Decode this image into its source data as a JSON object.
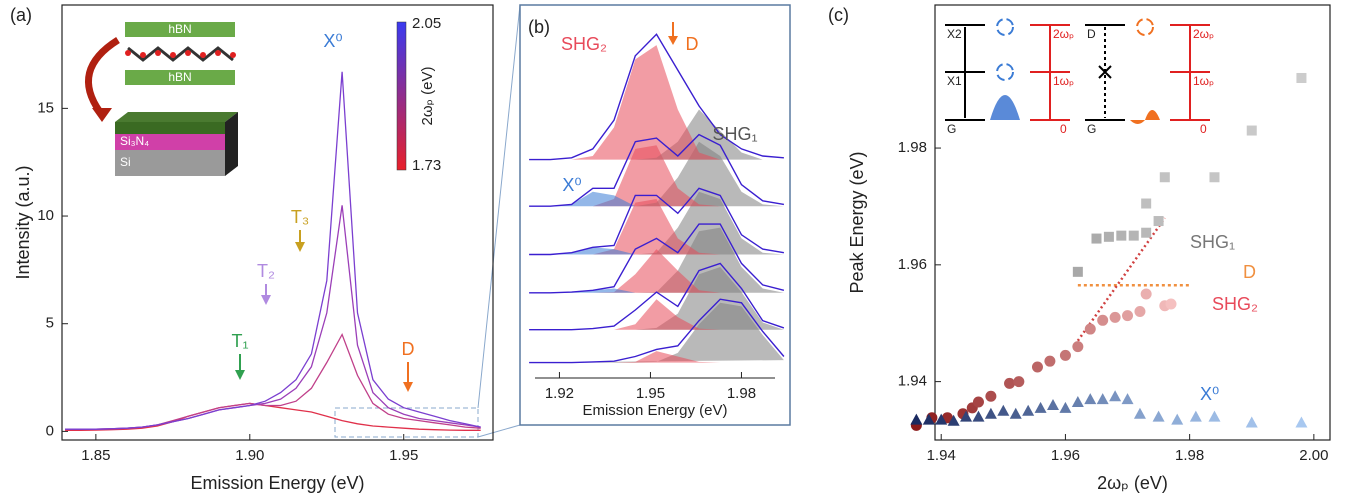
{
  "chart_data": [
    {
      "type": "line",
      "title": "(a)",
      "xlabel": "Emission Energy (eV)",
      "ylabel": "Intensity (a.u.)",
      "xlim": [
        1.839,
        1.979
      ],
      "ylim": [
        -0.4,
        19.8
      ],
      "xticks": [
        1.85,
        {
          "value": 1.9,
          "label": "1.90"
        },
        1.95
      ],
      "yticks": [
        0,
        5,
        10,
        15
      ],
      "x": [
        1.84,
        1.845,
        1.85,
        1.855,
        1.86,
        1.865,
        1.87,
        1.875,
        1.88,
        1.885,
        1.89,
        1.895,
        1.9,
        1.905,
        1.91,
        1.915,
        1.92,
        1.925,
        1.93,
        1.935,
        1.94,
        1.945,
        1.95,
        1.955,
        1.96,
        1.965,
        1.97,
        1.975
      ],
      "series": [
        {
          "color": "#e0304a",
          "values": [
            0.05,
            0.05,
            0.06,
            0.08,
            0.1,
            0.15,
            0.25,
            0.45,
            0.7,
            0.9,
            1.1,
            1.2,
            1.3,
            1.2,
            1.1,
            1.0,
            0.9,
            0.7,
            0.5,
            0.35,
            0.25,
            0.2,
            0.15,
            0.1,
            0.08,
            0.06,
            0.05,
            0.05
          ]
        },
        {
          "color": "#c0408a",
          "values": [
            0.1,
            0.1,
            0.1,
            0.12,
            0.15,
            0.2,
            0.3,
            0.5,
            0.7,
            0.9,
            1.1,
            1.2,
            1.3,
            1.2,
            1.2,
            1.4,
            2.0,
            3.2,
            4.5,
            2.6,
            1.3,
            0.8,
            0.6,
            0.5,
            0.4,
            0.3,
            0.2,
            0.15
          ]
        },
        {
          "color": "#9b3fb8",
          "values": [
            0.1,
            0.1,
            0.1,
            0.12,
            0.15,
            0.2,
            0.3,
            0.45,
            0.6,
            0.8,
            1.0,
            1.1,
            1.2,
            1.3,
            1.5,
            2.0,
            3.0,
            5.5,
            10.5,
            4.0,
            1.8,
            1.1,
            0.8,
            0.6,
            0.5,
            0.4,
            0.3,
            0.2
          ]
        },
        {
          "color": "#7b3fd0",
          "values": [
            0.1,
            0.1,
            0.1,
            0.12,
            0.15,
            0.2,
            0.3,
            0.45,
            0.6,
            0.8,
            1.0,
            1.1,
            1.2,
            1.4,
            1.8,
            2.4,
            3.6,
            7.0,
            16.7,
            5.5,
            2.4,
            1.5,
            1.1,
            0.9,
            0.7,
            0.5,
            0.35,
            0.2
          ]
        }
      ],
      "annotations": [
        {
          "text": "X⁰",
          "color": "#3a7bd5"
        },
        {
          "text": "T₃",
          "color": "#c8a020"
        },
        {
          "text": "T₂",
          "color": "#b08ae0"
        },
        {
          "text": "T₁",
          "color": "#30a050"
        },
        {
          "text": "D",
          "color": "#f07020"
        }
      ],
      "colorbar": {
        "label": "2ωₚ (eV)",
        "clim": [
          1.73,
          2.05
        ],
        "colors": [
          "#e8202a",
          "#3a3af0"
        ]
      },
      "inset_labels": [
        "hBN",
        "hBN",
        "Si₃N₄",
        "Si"
      ]
    },
    {
      "type": "offset-line",
      "title": "(b)",
      "xlabel": "Emission Energy (eV)",
      "xlim": [
        1.907,
        1.996
      ],
      "ylim": [
        0,
        10
      ],
      "xticks": [
        1.92,
        1.95,
        1.98
      ],
      "x": [
        1.91,
        1.917,
        1.924,
        1.931,
        1.938,
        1.945,
        1.952,
        1.959,
        1.966,
        1.973,
        1.98,
        1.987,
        1.994
      ],
      "fills": [
        {
          "color": "#808080",
          "values": [
            0.43,
            0.43,
            0.43,
            0.43,
            0.43,
            0.43,
            0.45,
            0.7,
            1.5,
            2.1,
            2.0,
            1.2,
            0.5
          ]
        },
        {
          "color": "#e84a5a",
          "values": [
            0.43,
            0.43,
            0.43,
            0.43,
            0.43,
            0.45,
            0.75,
            0.6,
            0.45,
            0.43,
            0.43,
            0.43,
            0.43
          ]
        },
        {
          "color": "#808080",
          "values": [
            1.35,
            1.35,
            1.35,
            1.35,
            1.35,
            1.35,
            1.4,
            1.8,
            2.9,
            3.1,
            2.4,
            1.55,
            1.35
          ]
        },
        {
          "color": "#e84a5a",
          "values": [
            1.35,
            1.35,
            1.35,
            1.35,
            1.35,
            1.5,
            2.2,
            1.7,
            1.38,
            1.35,
            1.35,
            1.35,
            1.35
          ]
        },
        {
          "color": "#808080",
          "values": [
            2.38,
            2.38,
            2.38,
            2.38,
            2.38,
            2.38,
            2.4,
            3.0,
            4.1,
            4.2,
            3.1,
            2.5,
            2.38
          ]
        },
        {
          "color": "#e84a5a",
          "values": [
            2.38,
            2.38,
            2.38,
            2.38,
            2.4,
            2.9,
            3.6,
            3.0,
            2.45,
            2.38,
            2.38,
            2.38,
            2.38
          ]
        },
        {
          "color": "#3a7bd5",
          "values": [
            2.38,
            2.38,
            2.4,
            2.45,
            2.5,
            2.38,
            2.38,
            2.38,
            2.38,
            2.38,
            2.38,
            2.38,
            2.38
          ]
        },
        {
          "color": "#808080",
          "values": [
            3.45,
            3.45,
            3.45,
            3.45,
            3.45,
            3.45,
            3.5,
            4.2,
            5.2,
            5.0,
            3.9,
            3.5,
            3.45
          ]
        },
        {
          "color": "#e84a5a",
          "values": [
            3.45,
            3.45,
            3.45,
            3.45,
            3.6,
            4.9,
            5.0,
            3.9,
            3.5,
            3.45,
            3.45,
            3.45,
            3.45
          ]
        },
        {
          "color": "#3a7bd5",
          "values": [
            3.45,
            3.45,
            3.5,
            3.65,
            3.6,
            3.45,
            3.45,
            3.45,
            3.45,
            3.45,
            3.45,
            3.45,
            3.45
          ]
        },
        {
          "color": "#808080",
          "values": [
            4.8,
            4.8,
            4.8,
            4.8,
            4.8,
            4.8,
            4.9,
            5.6,
            6.6,
            6.2,
            5.2,
            4.85,
            4.8
          ]
        },
        {
          "color": "#e84a5a",
          "values": [
            4.8,
            4.8,
            4.8,
            4.8,
            5.0,
            6.4,
            6.5,
            5.3,
            4.85,
            4.8,
            4.8,
            4.8,
            4.8
          ]
        },
        {
          "color": "#3a7bd5",
          "values": [
            4.8,
            4.8,
            4.85,
            5.2,
            5.1,
            4.8,
            4.8,
            4.8,
            4.8,
            4.8,
            4.8,
            4.8,
            4.8
          ]
        },
        {
          "color": "#808080",
          "values": [
            6.1,
            6.1,
            6.1,
            6.1,
            6.1,
            6.1,
            6.15,
            6.6,
            7.5,
            6.9,
            6.3,
            6.1,
            6.1
          ]
        },
        {
          "color": "#e84a5a",
          "values": [
            6.1,
            6.1,
            6.1,
            6.2,
            7.0,
            8.9,
            9.3,
            7.5,
            6.3,
            6.1,
            6.1,
            6.1,
            6.1
          ]
        }
      ],
      "series": [
        {
          "color": "#3a1fd0",
          "values": [
            0.43,
            0.43,
            0.43,
            0.45,
            0.47,
            0.6,
            0.8,
            0.9,
            1.6,
            2.2,
            2.1,
            1.3,
            0.6
          ]
        },
        {
          "color": "#3a1fd0",
          "values": [
            1.35,
            1.35,
            1.35,
            1.38,
            1.45,
            1.9,
            2.4,
            2.0,
            3.0,
            3.2,
            2.5,
            1.6,
            1.4
          ]
        },
        {
          "color": "#3a1fd0",
          "values": [
            2.38,
            2.38,
            2.4,
            2.45,
            2.55,
            3.6,
            3.9,
            3.5,
            4.3,
            4.3,
            3.2,
            2.6,
            2.45
          ]
        },
        {
          "color": "#3a1fd0",
          "values": [
            3.45,
            3.45,
            3.5,
            3.65,
            3.7,
            5.1,
            5.1,
            4.6,
            5.3,
            5.1,
            4.0,
            3.6,
            3.5
          ]
        },
        {
          "color": "#3a1fd0",
          "values": [
            4.8,
            4.8,
            4.85,
            5.3,
            5.3,
            6.6,
            6.7,
            6.2,
            6.8,
            6.5,
            5.4,
            4.95,
            4.85
          ]
        },
        {
          "color": "#3a1fd0",
          "values": [
            6.1,
            6.1,
            6.15,
            6.4,
            7.2,
            9.0,
            9.6,
            8.6,
            7.6,
            6.8,
            6.4,
            6.2,
            6.15
          ]
        }
      ],
      "annotations": [
        {
          "text": "SHG₂",
          "color": "#e84a5a"
        },
        {
          "text": "D",
          "color": "#f07020"
        },
        {
          "text": "SHG₁",
          "color": "#555555"
        },
        {
          "text": "X⁰",
          "color": "#3a7bd5"
        }
      ]
    },
    {
      "type": "scatter",
      "title": "(c)",
      "xlabel": "2ωₚ (eV)",
      "ylabel": "Peak Energy (eV)",
      "xlim": [
        1.939,
        2.0026
      ],
      "ylim": [
        1.93,
        2.0045
      ],
      "xticks": [
        1.94,
        1.96,
        1.98,
        {
          "value": 2,
          "label": "2.00"
        }
      ],
      "yticks": [
        1.94,
        1.96,
        1.98
      ],
      "series": [
        {
          "name": "SHG₁",
          "marker": "square",
          "color_range": [
            "#a8a8a8",
            "#cccccc"
          ],
          "x": [
            1.962,
            1.965,
            1.967,
            1.969,
            1.971,
            1.973,
            1.975,
            1.973,
            1.976,
            1.984,
            1.99,
            1.998
          ],
          "values": [
            1.9588,
            1.9645,
            1.9648,
            1.965,
            1.965,
            1.9655,
            1.9675,
            1.9705,
            1.975,
            1.975,
            1.983,
            1.992
          ]
        },
        {
          "name": "SHG₂",
          "marker": "circle",
          "color_range": [
            "#8b1a1a",
            "#f5c0c0"
          ],
          "x": [
            1.936,
            1.9385,
            1.941,
            1.9435,
            1.945,
            1.946,
            1.948,
            1.951,
            1.9525,
            1.9555,
            1.9575,
            1.96,
            1.962,
            1.964,
            1.966,
            1.968,
            1.97,
            1.972,
            1.973,
            1.976,
            1.977
          ],
          "values": [
            1.9325,
            1.9338,
            1.9338,
            1.9345,
            1.9355,
            1.9365,
            1.9375,
            1.9397,
            1.94,
            1.9425,
            1.9435,
            1.9445,
            1.946,
            1.949,
            1.9505,
            1.951,
            1.9513,
            1.952,
            1.955,
            1.953,
            1.9533
          ]
        },
        {
          "name": "X⁰",
          "marker": "triangle",
          "color_range": [
            "#1a2a60",
            "#a8c8f0"
          ],
          "x": [
            1.936,
            1.938,
            1.94,
            1.942,
            1.944,
            1.946,
            1.948,
            1.95,
            1.952,
            1.954,
            1.956,
            1.958,
            1.96,
            1.962,
            1.964,
            1.966,
            1.968,
            1.97,
            1.972,
            1.975,
            1.978,
            1.981,
            1.984,
            1.99,
            1.998
          ],
          "values": [
            1.9335,
            1.9335,
            1.9335,
            1.9333,
            1.934,
            1.934,
            1.9345,
            1.935,
            1.9345,
            1.935,
            1.9355,
            1.936,
            1.9355,
            1.9365,
            1.937,
            1.937,
            1.9375,
            1.937,
            1.9345,
            1.934,
            1.9335,
            1.934,
            1.934,
            1.933,
            1.933
          ]
        }
      ],
      "lines": [
        {
          "name": "D",
          "color": "#f09040",
          "dash": "3,3",
          "x": [
            1.962,
            1.98
          ],
          "values": [
            1.9565,
            1.9565
          ]
        },
        {
          "color": "#d04040",
          "dash": "2,3",
          "x": [
            1.962,
            1.976
          ],
          "values": [
            1.947,
            1.968
          ]
        }
      ],
      "inset_labels": [
        "X2",
        "X1",
        "G",
        "2ωₚ",
        "1ωₚ",
        "0",
        "D",
        "G",
        "2ωₚ",
        "1ωₚ",
        "0"
      ]
    }
  ]
}
